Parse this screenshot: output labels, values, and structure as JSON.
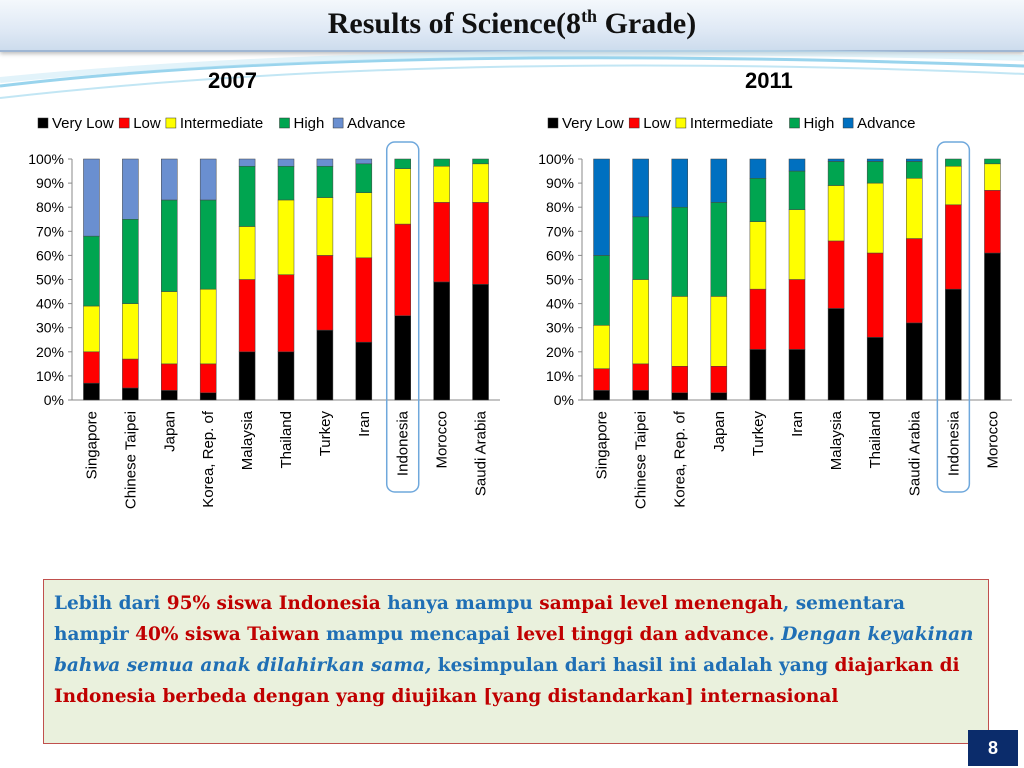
{
  "slide": {
    "title_main": "Results of Science(8",
    "title_sup": "th",
    "title_end": " Grade)",
    "page_number": "8"
  },
  "colors": {
    "very_low": "#000000",
    "low": "#ff0000",
    "intermediate": "#ffff00",
    "high": "#00a550",
    "advance_2007": "#6a8fd0",
    "advance_2011": "#0070c0",
    "highlight": "#6fa8dc"
  },
  "chart_data": [
    {
      "type": "bar",
      "stacked": true,
      "title": "2007",
      "legend": [
        "Very Low",
        "Low",
        "Intermediate",
        "High",
        "Advance"
      ],
      "legend_position": "top",
      "yticks": [
        "100%",
        "90%",
        "80%",
        "70%",
        "60%",
        "50%",
        "40%",
        "30%",
        "20%",
        "10%",
        "0%"
      ],
      "ylim": [
        0,
        100
      ],
      "highlight_category": "Indonesia",
      "categories": [
        "Singapore",
        "Chinese Taipei",
        "Japan",
        "Korea, Rep. of",
        "Malaysia",
        "Thailand",
        "Turkey",
        "Iran",
        "Indonesia",
        "Morocco",
        "Saudi Arabia"
      ],
      "series": [
        {
          "name": "Very Low",
          "values": [
            7,
            5,
            4,
            3,
            20,
            20,
            29,
            24,
            35,
            49,
            48
          ]
        },
        {
          "name": "Low",
          "values": [
            13,
            12,
            11,
            12,
            30,
            32,
            31,
            35,
            38,
            33,
            34
          ]
        },
        {
          "name": "Intermediate",
          "values": [
            19,
            23,
            30,
            31,
            22,
            31,
            24,
            27,
            23,
            15,
            16
          ]
        },
        {
          "name": "High",
          "values": [
            29,
            35,
            38,
            37,
            25,
            14,
            13,
            12,
            4,
            3,
            2
          ]
        },
        {
          "name": "Advance",
          "values": [
            32,
            25,
            17,
            17,
            3,
            3,
            3,
            2,
            0,
            0,
            0
          ]
        }
      ]
    },
    {
      "type": "bar",
      "stacked": true,
      "title": "2011",
      "legend": [
        "Very Low",
        "Low",
        "Intermediate",
        "High",
        "Advance"
      ],
      "legend_position": "top",
      "yticks": [
        "100%",
        "90%",
        "80%",
        "70%",
        "60%",
        "50%",
        "40%",
        "30%",
        "20%",
        "10%",
        "0%"
      ],
      "ylim": [
        0,
        100
      ],
      "highlight_category": "Indonesia",
      "categories": [
        "Singapore",
        "Chinese Taipei",
        "Korea, Rep. of",
        "Japan",
        "Turkey",
        "Iran",
        "Malaysia",
        "Thailand",
        "Saudi Arabia",
        "Indonesia",
        "Morocco"
      ],
      "series": [
        {
          "name": "Very Low",
          "values": [
            4,
            4,
            3,
            3,
            21,
            21,
            38,
            26,
            32,
            46,
            61
          ]
        },
        {
          "name": "Low",
          "values": [
            9,
            11,
            11,
            11,
            25,
            29,
            28,
            35,
            35,
            35,
            26
          ]
        },
        {
          "name": "Intermediate",
          "values": [
            18,
            35,
            29,
            29,
            28,
            29,
            23,
            29,
            25,
            16,
            11
          ]
        },
        {
          "name": "High",
          "values": [
            29,
            26,
            37,
            39,
            18,
            16,
            10,
            9,
            7,
            3,
            2
          ]
        },
        {
          "name": "Advance",
          "values": [
            40,
            24,
            20,
            18,
            8,
            5,
            1,
            1,
            1,
            0,
            0
          ]
        }
      ]
    }
  ],
  "note": {
    "p1": "Lebih dari ",
    "p2": "95% siswa Indonesia",
    "p3": " hanya mampu ",
    "p4": "sampai level menengah",
    "p5": ", sementara hampir ",
    "p6": "40%  siswa Taiwan",
    "p7": " mampu mencapai ",
    "p8": "level tinggi dan advance",
    "p9": ". ",
    "p10": "Dengan keyakinan bahwa semua anak dilahirkan sama,",
    "p11": " kesimpulan dari hasil ini adalah yang ",
    "p12": "diajarkan di Indonesia berbeda dengan yang diujikan [yang distandarkan] internasional"
  }
}
